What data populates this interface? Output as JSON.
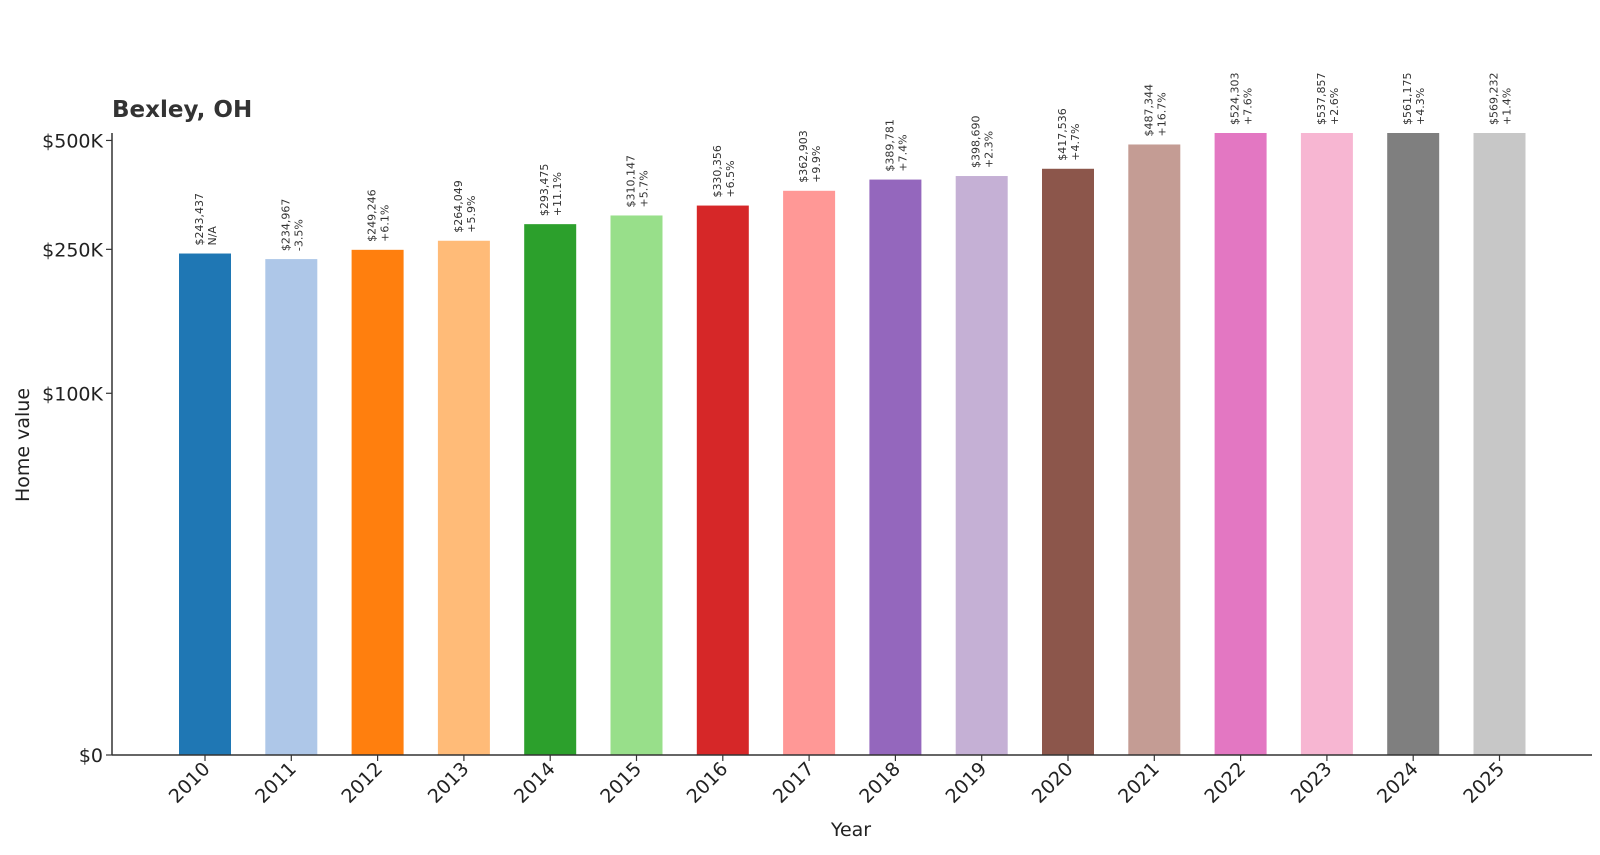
{
  "chart_data": {
    "type": "bar",
    "title": "Bexley, OH",
    "xlabel": "Year",
    "ylabel": "Home value",
    "categories": [
      "2010",
      "2011",
      "2012",
      "2013",
      "2014",
      "2015",
      "2016",
      "2017",
      "2018",
      "2019",
      "2020",
      "2021",
      "2022",
      "2023",
      "2024",
      "2025"
    ],
    "values": [
      243437,
      234967,
      249246,
      264049,
      293475,
      310147,
      330356,
      362903,
      389781,
      398690,
      417536,
      487344,
      524303,
      537857,
      561175,
      569232
    ],
    "value_labels": [
      "$243,437",
      "$234,967",
      "$249,246",
      "$264,049",
      "$293,475",
      "$310,147",
      "$330,356",
      "$362,903",
      "$389,781",
      "$398,690",
      "$417,536",
      "$487,344",
      "$524,303",
      "$537,857",
      "$561,175",
      "$569,232"
    ],
    "change_labels": [
      "N/A",
      "-3.5%",
      "+6.1%",
      "+5.9%",
      "+11.1%",
      "+5.7%",
      "+6.5%",
      "+9.9%",
      "+7.4%",
      "+2.3%",
      "+4.7%",
      "+16.7%",
      "+7.6%",
      "+2.6%",
      "+4.3%",
      "+1.4%"
    ],
    "colors": [
      "#1f77b4",
      "#aec7e8",
      "#ff7f0e",
      "#ffbb78",
      "#2ca02c",
      "#98df8a",
      "#d62728",
      "#ff9896",
      "#9467bd",
      "#c5b0d5",
      "#8c564b",
      "#c49c94",
      "#e377c2",
      "#f7b6d2",
      "#7f7f7f",
      "#c7c7c7"
    ],
    "yticks": [
      0,
      100000,
      250000,
      500000
    ],
    "ytick_labels": [
      "$0",
      "$100K",
      "$250K",
      "$500K"
    ],
    "y_scale": "symlog",
    "ylim_display_max": 524303,
    "grid": false,
    "legend": "none"
  }
}
